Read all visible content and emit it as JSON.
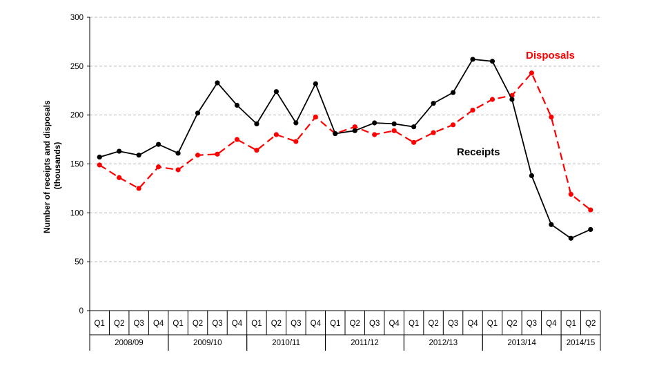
{
  "chart_data": {
    "type": "line",
    "ylabel_line1": "Number of receipts and disposals",
    "ylabel_line2": "(thousands)",
    "ylim": [
      0,
      300
    ],
    "yticks": [
      0,
      50,
      100,
      150,
      200,
      250,
      300
    ],
    "grid": "horizontal dashed",
    "quarters": [
      "Q1",
      "Q2",
      "Q3",
      "Q4",
      "Q1",
      "Q2",
      "Q3",
      "Q4",
      "Q1",
      "Q2",
      "Q3",
      "Q4",
      "Q1",
      "Q2",
      "Q3",
      "Q4",
      "Q1",
      "Q2",
      "Q3",
      "Q4",
      "Q1",
      "Q2",
      "Q3",
      "Q4",
      "Q1",
      "Q2"
    ],
    "years": [
      {
        "label": "2008/09",
        "start": 0,
        "end": 3
      },
      {
        "label": "2009/10",
        "start": 4,
        "end": 7
      },
      {
        "label": "2010/11",
        "start": 8,
        "end": 11
      },
      {
        "label": "2011/12",
        "start": 12,
        "end": 15
      },
      {
        "label": "2012/13",
        "start": 16,
        "end": 19
      },
      {
        "label": "2013/14",
        "start": 20,
        "end": 23
      },
      {
        "label": "2014/15",
        "start": 24,
        "end": 25
      }
    ],
    "series": [
      {
        "name": "Receipts",
        "color": "#000000",
        "style": "solid",
        "values": [
          157,
          163,
          159,
          170,
          161,
          202,
          233,
          210,
          191,
          224,
          192,
          232,
          181,
          184,
          192,
          191,
          188,
          212,
          223,
          257,
          255,
          216,
          138,
          88,
          74,
          83
        ]
      },
      {
        "name": "Disposals",
        "color": "#ff0000",
        "style": "dashed",
        "values": [
          149,
          136,
          125,
          147,
          144,
          159,
          160,
          175,
          164,
          180,
          173,
          198,
          181,
          188,
          180,
          184,
          172,
          182,
          190,
          205,
          216,
          220,
          243,
          198,
          119,
          103
        ]
      }
    ]
  }
}
